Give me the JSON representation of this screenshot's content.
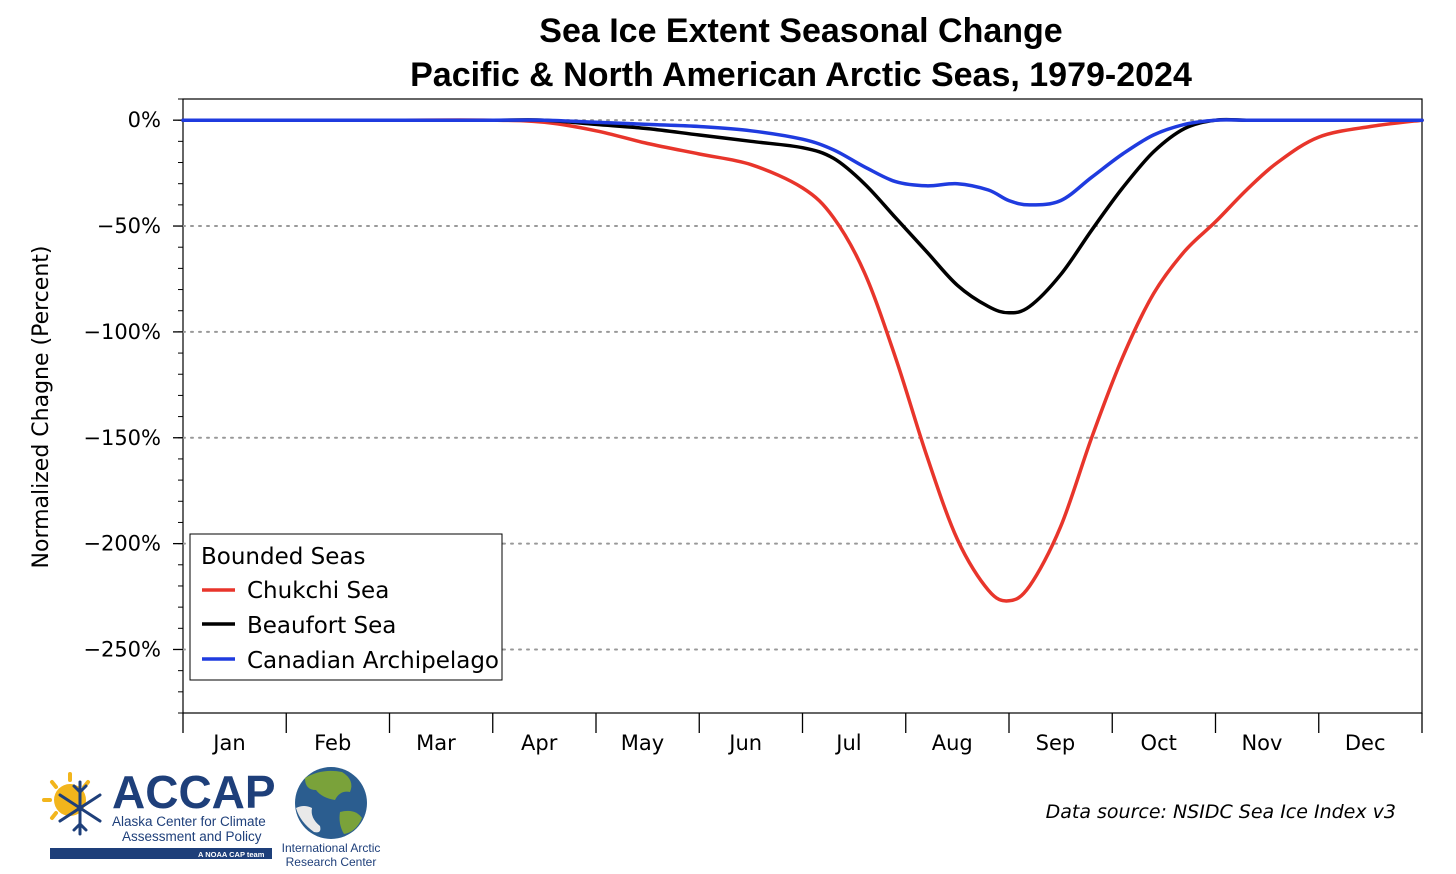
{
  "chart_data": {
    "type": "line",
    "title": "Sea Ice Extent Seasonal Change",
    "subtitle": "Pacific & North American Arctic Seas, 1979-2024",
    "xlabel": "",
    "ylabel": "Normalized Chagne (Percent)",
    "categories": [
      "Jan",
      "Feb",
      "Mar",
      "Apr",
      "May",
      "Jun",
      "Jul",
      "Aug",
      "Sep",
      "Oct",
      "Nov",
      "Dec"
    ],
    "ylim": [
      -280,
      10
    ],
    "xlim": [
      1,
      13
    ],
    "yticks": [
      0,
      -50,
      -100,
      -150,
      -200,
      -250
    ],
    "ytick_labels": [
      "0%",
      "−50%",
      "−100%",
      "−150%",
      "−200%",
      "−250%"
    ],
    "grid": "horizontal dotted",
    "legend": {
      "title": "Bounded Seas",
      "position": "bottom-left"
    },
    "series": [
      {
        "name": "Chukchi Sea",
        "color": "#e8352b",
        "x": [
          1,
          2,
          3,
          4,
          4.5,
          5,
          5.5,
          6,
          6.5,
          7,
          7.3,
          7.6,
          7.9,
          8.2,
          8.5,
          8.8,
          9.0,
          9.2,
          9.5,
          9.8,
          10.1,
          10.4,
          10.7,
          11.0,
          11.3,
          11.6,
          12.0,
          12.5,
          13.0
        ],
        "y": [
          0,
          0,
          0,
          0,
          -1,
          -5,
          -11,
          -16,
          -21,
          -32,
          -46,
          -72,
          -112,
          -158,
          -198,
          -222,
          -227,
          -220,
          -192,
          -150,
          -112,
          -82,
          -62,
          -48,
          -33,
          -20,
          -8,
          -3,
          0
        ]
      },
      {
        "name": "Beaufort Sea",
        "color": "#000000",
        "x": [
          1,
          2,
          3,
          4,
          4.5,
          5,
          5.5,
          6,
          6.5,
          7,
          7.3,
          7.6,
          7.9,
          8.2,
          8.5,
          8.8,
          9.0,
          9.2,
          9.5,
          9.8,
          10.1,
          10.4,
          10.7,
          11.0,
          11.3,
          11.6,
          12.0,
          12.5,
          13.0
        ],
        "y": [
          0,
          0,
          0,
          0,
          0,
          -2,
          -4,
          -7,
          -10,
          -13,
          -18,
          -30,
          -46,
          -62,
          -78,
          -88,
          -91,
          -88,
          -73,
          -52,
          -32,
          -15,
          -4,
          0,
          0,
          0,
          0,
          0,
          0
        ]
      },
      {
        "name": "Canadian Archipelago",
        "color": "#1f3bdf",
        "x": [
          1,
          2,
          3,
          4,
          4.5,
          5,
          5.5,
          6,
          6.5,
          7,
          7.3,
          7.6,
          7.9,
          8.2,
          8.5,
          8.8,
          9.0,
          9.2,
          9.5,
          9.8,
          10.1,
          10.4,
          10.7,
          11.0,
          11.3,
          11.6,
          12.0,
          12.5,
          13.0
        ],
        "y": [
          0,
          0,
          0,
          0,
          0,
          -1,
          -2,
          -3,
          -5,
          -9,
          -14,
          -22,
          -29,
          -31,
          -30,
          -33,
          -38,
          -40,
          -38,
          -27,
          -16,
          -7,
          -2,
          0,
          0,
          0,
          0,
          0,
          0
        ]
      }
    ]
  },
  "source": "Data source: NSIDC Sea Ice Index v3",
  "logos": {
    "accap_name": "ACCAP",
    "accap_line1": "Alaska Center for Climate",
    "accap_line2": "Assessment and Policy",
    "accap_tag": "A NOAA CAP team",
    "iarc_line1": "International Arctic",
    "iarc_line2": "Research Center",
    "accap_blue": "#1e3f7a",
    "accap_sun": "#f2b51c"
  }
}
